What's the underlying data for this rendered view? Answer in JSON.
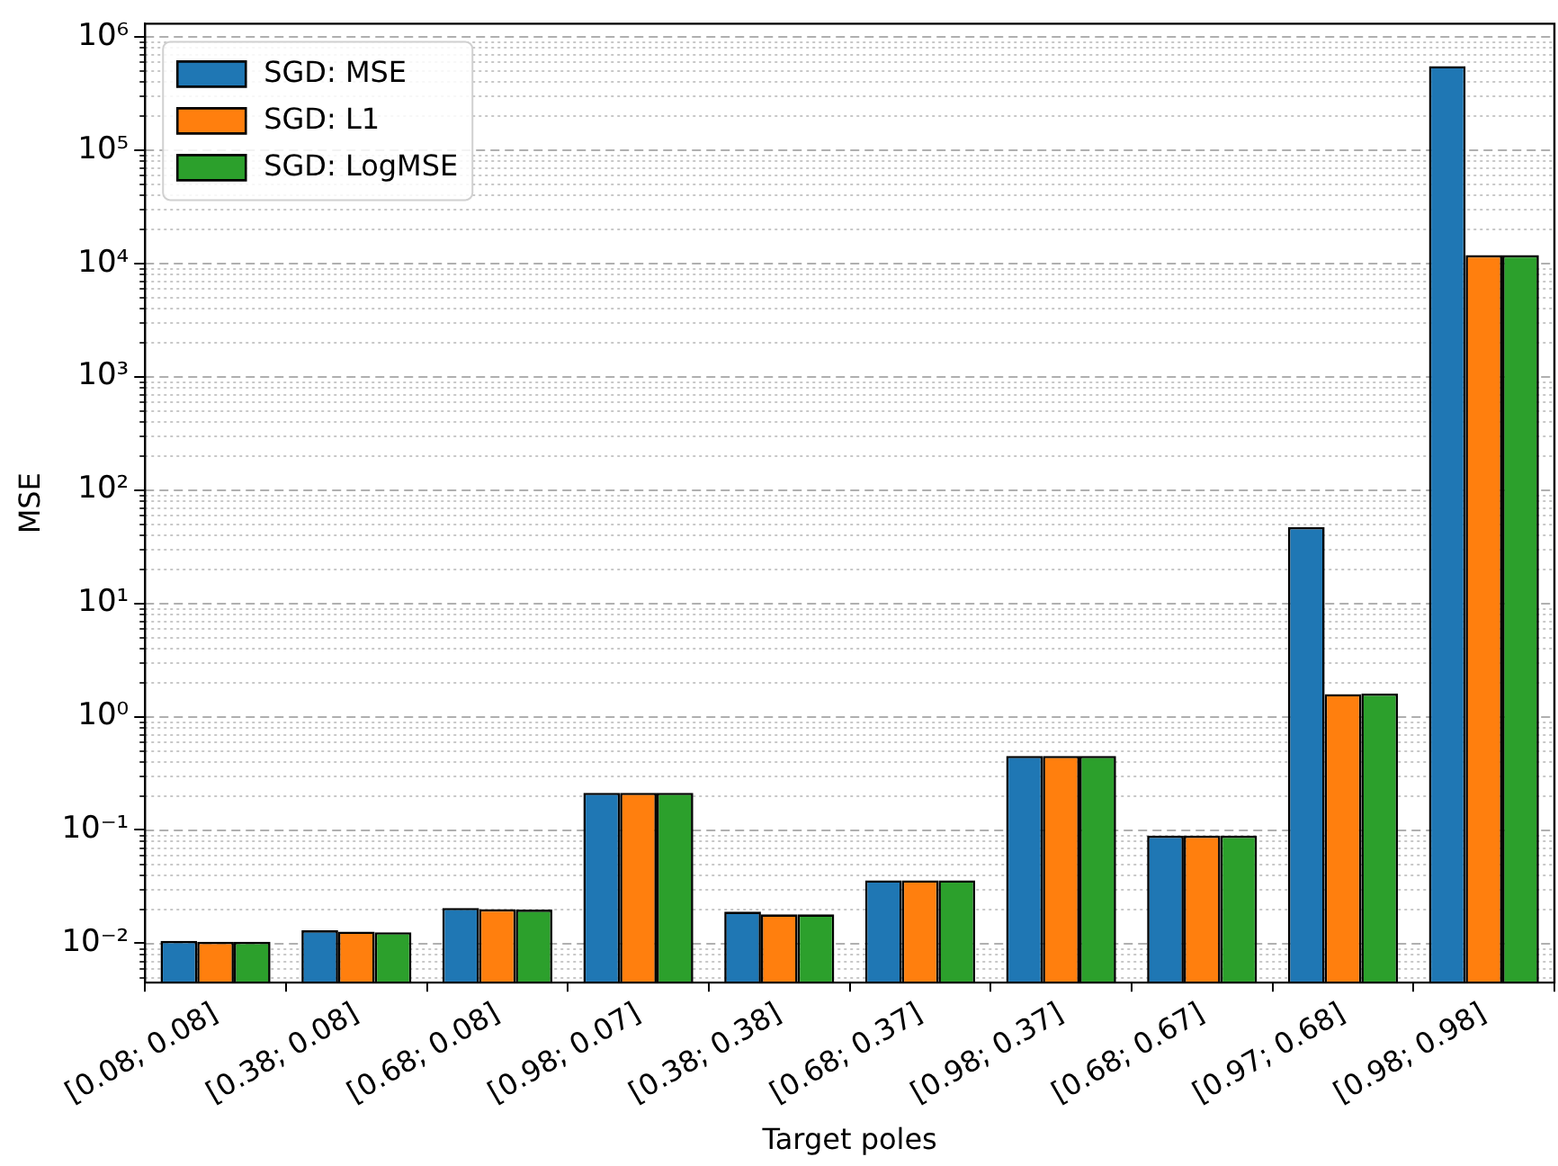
{
  "chart_data": {
    "type": "bar",
    "xlabel": "Target poles",
    "ylabel": "MSE",
    "categories": [
      "[0.08; 0.08]",
      "[0.38; 0.08]",
      "[0.68; 0.08]",
      "[0.98; 0.07]",
      "[0.38; 0.38]",
      "[0.68; 0.37]",
      "[0.98; 0.37]",
      "[0.68; 0.67]",
      "[0.97; 0.68]",
      "[0.98; 0.98]"
    ],
    "series": [
      {
        "name": "SGD: MSE",
        "color": "#1f77b4",
        "values": [
          0.0105,
          0.013,
          0.0205,
          0.213,
          0.019,
          0.036,
          0.45,
          0.089,
          47,
          550000
        ]
      },
      {
        "name": "SGD: L1",
        "color": "#ff7f0e",
        "values": [
          0.0103,
          0.0127,
          0.02,
          0.213,
          0.018,
          0.036,
          0.45,
          0.089,
          1.58,
          11800
        ]
      },
      {
        "name": "SGD: LogMSE",
        "color": "#2ca02c",
        "values": [
          0.0103,
          0.0125,
          0.0198,
          0.213,
          0.018,
          0.036,
          0.45,
          0.089,
          1.6,
          11800
        ]
      }
    ],
    "log": "y",
    "ylim": [
      0.0045,
      1300000
    ],
    "yticks": [
      {
        "value": 0.01,
        "label": "10⁻²"
      },
      {
        "value": 0.1,
        "label": "10⁻¹"
      },
      {
        "value": 1,
        "label": "10⁰"
      },
      {
        "value": 10,
        "label": "10¹"
      },
      {
        "value": 100,
        "label": "10²"
      },
      {
        "value": 1000,
        "label": "10³"
      },
      {
        "value": 10000,
        "label": "10⁴"
      },
      {
        "value": 100000,
        "label": "10⁵"
      },
      {
        "value": 1000000,
        "label": "10⁶"
      }
    ],
    "grid": "y",
    "legend": "top left"
  }
}
